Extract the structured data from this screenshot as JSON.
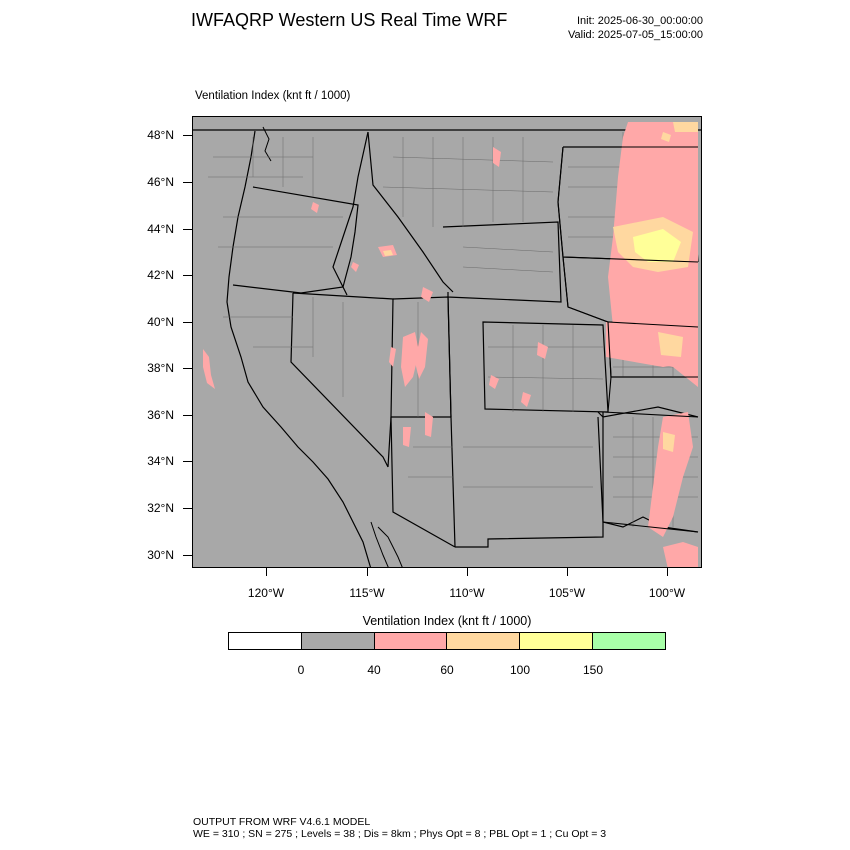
{
  "header": {
    "title": "IWFAQRP Western US Real Time WRF",
    "init": "Init: 2025-06-30_00:00:00",
    "valid": "Valid: 2025-07-05_15:00:00"
  },
  "map": {
    "field_label": "Ventilation Index   (knt ft / 1000)",
    "background_color": "#a8a8a8",
    "lat_labels": [
      "48°N",
      "46°N",
      "44°N",
      "42°N",
      "40°N",
      "38°N",
      "36°N",
      "34°N",
      "32°N",
      "30°N"
    ],
    "lon_labels": [
      "120°W",
      "115°W",
      "110°W",
      "105°W",
      "100°W"
    ]
  },
  "legend": {
    "title": "Ventilation Index   (knt ft / 1000)",
    "colors": [
      "#ffffff",
      "#a8a8a8",
      "#ffa8a8",
      "#ffd8a0",
      "#ffff98",
      "#a8ffa8"
    ],
    "tick_labels": [
      "0",
      "40",
      "60",
      "100",
      "150"
    ]
  },
  "footer": {
    "line1": "OUTPUT FROM WRF V4.6.1 MODEL",
    "line2": "WE = 310 ; SN = 275 ; Levels = 38 ; Dis = 8km ; Phys Opt = 8 ; PBL Opt = 1 ; Cu Opt = 3"
  }
}
